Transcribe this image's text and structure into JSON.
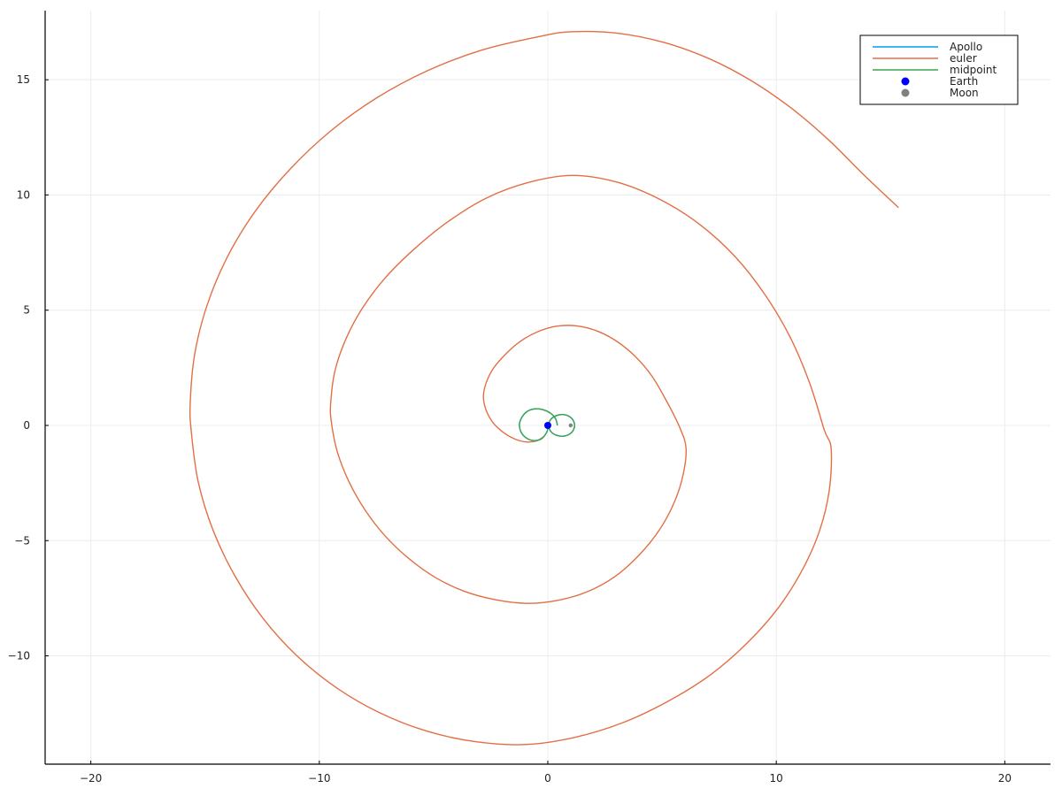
{
  "chart_data": {
    "type": "line",
    "title": "",
    "xlabel": "",
    "ylabel": "",
    "xlim": [
      -22.0,
      22.0
    ],
    "ylim": [
      -14.7,
      18.0
    ],
    "grid": true,
    "legend_position": "top-right",
    "x_ticks": [
      {
        "value": -20,
        "label": "−20"
      },
      {
        "value": -10,
        "label": "−10"
      },
      {
        "value": 0,
        "label": "0"
      },
      {
        "value": 10,
        "label": "10"
      },
      {
        "value": 20,
        "label": "20"
      }
    ],
    "y_ticks": [
      {
        "value": -10,
        "label": "−10"
      },
      {
        "value": -5,
        "label": "−5"
      },
      {
        "value": 0,
        "label": "0"
      },
      {
        "value": 5,
        "label": "5"
      },
      {
        "value": 10,
        "label": "10"
      },
      {
        "value": 15,
        "label": "15"
      }
    ],
    "series": [
      {
        "name": "Apollo",
        "kind": "line",
        "color": "#009AFA",
        "points": [
          [
            0.42,
            0.0
          ],
          [
            0.34,
            0.29
          ],
          [
            0.12,
            0.53
          ],
          [
            -0.2,
            0.68
          ],
          [
            -0.55,
            0.72
          ],
          [
            -0.88,
            0.62
          ],
          [
            -1.12,
            0.38
          ],
          [
            -1.24,
            0.06
          ],
          [
            -1.18,
            -0.27
          ],
          [
            -0.95,
            -0.54
          ],
          [
            -0.62,
            -0.66
          ],
          [
            -0.28,
            -0.58
          ],
          [
            -0.05,
            -0.3
          ],
          [
            0.03,
            0.0
          ],
          [
            0.12,
            0.25
          ],
          [
            0.36,
            0.42
          ],
          [
            0.68,
            0.47
          ],
          [
            0.98,
            0.36
          ],
          [
            1.15,
            0.13
          ],
          [
            1.15,
            -0.13
          ],
          [
            0.98,
            -0.36
          ],
          [
            0.68,
            -0.47
          ],
          [
            0.36,
            -0.42
          ],
          [
            0.12,
            -0.25
          ],
          [
            0.03,
            0.0
          ]
        ]
      },
      {
        "name": "euler",
        "kind": "line",
        "color": "#E26F46",
        "points": [
          [
            -0.15,
            -0.47
          ],
          [
            -0.49,
            -0.67
          ],
          [
            -0.92,
            -0.72
          ],
          [
            -1.42,
            -0.6
          ],
          [
            -1.94,
            -0.31
          ],
          [
            -2.4,
            0.12
          ],
          [
            -2.7,
            0.66
          ],
          [
            -2.82,
            1.24
          ],
          [
            -2.7,
            1.84
          ],
          [
            -2.38,
            2.48
          ],
          [
            -1.82,
            3.12
          ],
          [
            -1.2,
            3.65
          ],
          [
            -0.48,
            4.05
          ],
          [
            0.35,
            4.3
          ],
          [
            1.25,
            4.32
          ],
          [
            2.15,
            4.1
          ],
          [
            3.0,
            3.66
          ],
          [
            3.82,
            3.0
          ],
          [
            4.55,
            2.15
          ],
          [
            5.2,
            1.05
          ],
          [
            5.78,
            -0.1
          ],
          [
            6.05,
            -1.0
          ],
          [
            5.92,
            -2.15
          ],
          [
            5.55,
            -3.3
          ],
          [
            4.92,
            -4.48
          ],
          [
            4.02,
            -5.6
          ],
          [
            2.95,
            -6.55
          ],
          [
            1.72,
            -7.22
          ],
          [
            0.38,
            -7.6
          ],
          [
            -0.95,
            -7.72
          ],
          [
            -2.32,
            -7.56
          ],
          [
            -3.65,
            -7.2
          ],
          [
            -4.92,
            -6.6
          ],
          [
            -6.08,
            -5.78
          ],
          [
            -7.1,
            -4.82
          ],
          [
            -7.98,
            -3.7
          ],
          [
            -8.7,
            -2.45
          ],
          [
            -9.22,
            -1.12
          ],
          [
            -9.48,
            0.2
          ],
          [
            -9.5,
            1.0
          ],
          [
            -9.32,
            2.35
          ],
          [
            -8.85,
            3.72
          ],
          [
            -8.12,
            5.08
          ],
          [
            -7.1,
            6.42
          ],
          [
            -5.85,
            7.65
          ],
          [
            -4.4,
            8.82
          ],
          [
            -2.7,
            9.86
          ],
          [
            -0.82,
            10.55
          ],
          [
            1.1,
            10.85
          ],
          [
            3.05,
            10.55
          ],
          [
            4.92,
            9.8
          ],
          [
            6.65,
            8.72
          ],
          [
            8.2,
            7.32
          ],
          [
            9.52,
            5.65
          ],
          [
            10.62,
            3.8
          ],
          [
            11.48,
            1.78
          ],
          [
            12.1,
            -0.2
          ],
          [
            12.4,
            -1.0
          ],
          [
            12.32,
            -2.8
          ],
          [
            11.9,
            -4.55
          ],
          [
            11.15,
            -6.25
          ],
          [
            10.1,
            -7.9
          ],
          [
            8.75,
            -9.42
          ],
          [
            7.15,
            -10.8
          ],
          [
            5.3,
            -11.95
          ],
          [
            3.28,
            -12.9
          ],
          [
            1.12,
            -13.55
          ],
          [
            -1.0,
            -13.85
          ],
          [
            -3.2,
            -13.72
          ],
          [
            -5.35,
            -13.25
          ],
          [
            -7.4,
            -12.45
          ],
          [
            -9.3,
            -11.35
          ],
          [
            -11.0,
            -9.98
          ],
          [
            -12.48,
            -8.35
          ],
          [
            -13.7,
            -6.52
          ],
          [
            -14.65,
            -4.55
          ],
          [
            -15.3,
            -2.45
          ],
          [
            -15.6,
            -0.3
          ],
          [
            -15.65,
            1.0
          ],
          [
            -15.45,
            3.12
          ],
          [
            -14.9,
            5.25
          ],
          [
            -14.02,
            7.32
          ],
          [
            -12.8,
            9.3
          ],
          [
            -11.28,
            11.12
          ],
          [
            -9.5,
            12.78
          ],
          [
            -7.48,
            14.22
          ],
          [
            -5.25,
            15.4
          ],
          [
            -2.85,
            16.3
          ],
          [
            -0.35,
            16.88
          ],
          [
            1.0,
            17.08
          ],
          [
            3.05,
            17.02
          ],
          [
            5.08,
            16.62
          ],
          [
            7.05,
            15.92
          ],
          [
            8.92,
            14.95
          ],
          [
            10.68,
            13.75
          ],
          [
            12.3,
            12.38
          ],
          [
            13.75,
            10.95
          ],
          [
            15.35,
            9.45
          ]
        ]
      },
      {
        "name": "midpoint",
        "kind": "line",
        "color": "#3DA44D",
        "points": [
          [
            0.42,
            0.0
          ],
          [
            0.34,
            0.29
          ],
          [
            0.12,
            0.53
          ],
          [
            -0.2,
            0.68
          ],
          [
            -0.55,
            0.72
          ],
          [
            -0.88,
            0.62
          ],
          [
            -1.12,
            0.38
          ],
          [
            -1.24,
            0.06
          ],
          [
            -1.18,
            -0.27
          ],
          [
            -0.95,
            -0.54
          ],
          [
            -0.62,
            -0.66
          ],
          [
            -0.28,
            -0.58
          ],
          [
            -0.05,
            -0.3
          ],
          [
            0.03,
            0.0
          ],
          [
            0.12,
            0.25
          ],
          [
            0.36,
            0.42
          ],
          [
            0.68,
            0.47
          ],
          [
            0.98,
            0.36
          ],
          [
            1.15,
            0.13
          ],
          [
            1.15,
            -0.13
          ],
          [
            0.98,
            -0.36
          ],
          [
            0.68,
            -0.47
          ],
          [
            0.36,
            -0.42
          ],
          [
            0.12,
            -0.25
          ],
          [
            0.03,
            0.0
          ]
        ]
      },
      {
        "name": "Earth",
        "kind": "scatter",
        "color": "#0000FF",
        "points": [
          [
            0.0,
            0.0
          ]
        ]
      },
      {
        "name": "Moon",
        "kind": "scatter",
        "color": "#808080",
        "points": [
          [
            1.0,
            0.0
          ]
        ]
      }
    ]
  }
}
